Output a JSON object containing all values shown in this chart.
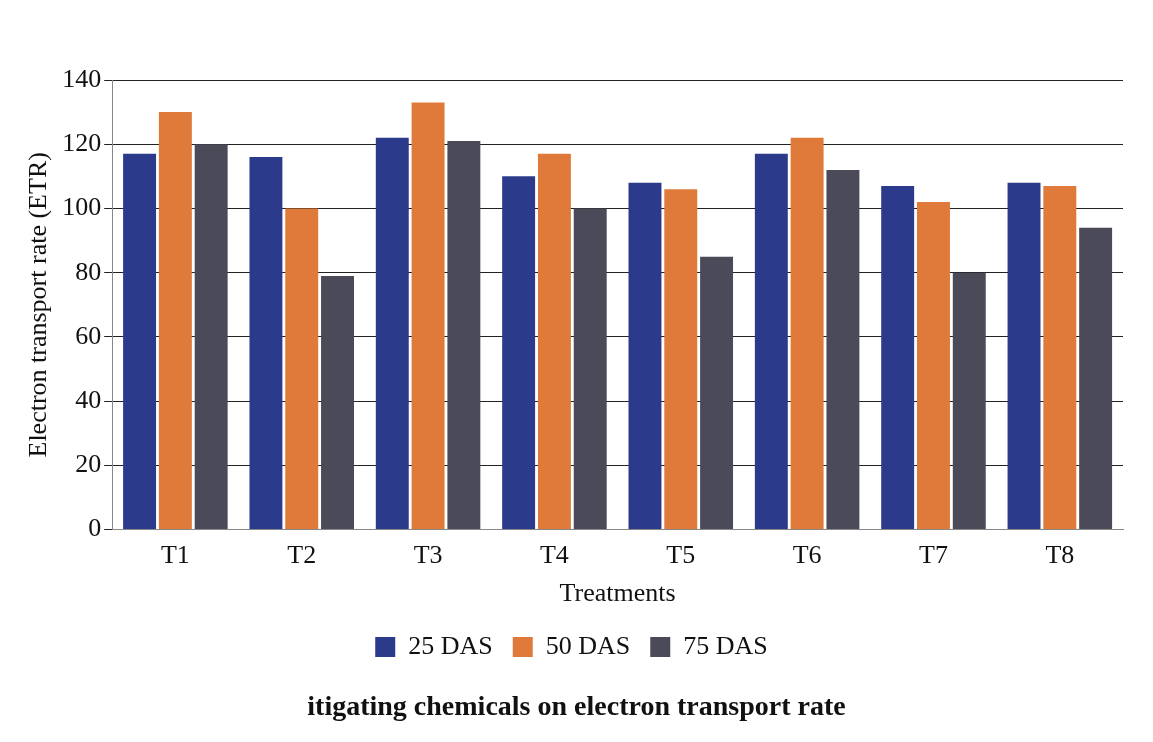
{
  "chart_data": {
    "type": "bar",
    "xlabel": "Treatments",
    "ylabel": "Electron transport rate (ETR)",
    "categories": [
      "T1",
      "T2",
      "T3",
      "T4",
      "T5",
      "T6",
      "T7",
      "T8"
    ],
    "series": [
      {
        "name": "25 DAS",
        "color": "#2b3a8a",
        "values": [
          117,
          116,
          122,
          110,
          108,
          117,
          107,
          108
        ]
      },
      {
        "name": "50 DAS",
        "color": "#e07a3a",
        "values": [
          130,
          100,
          133,
          117,
          106,
          122,
          102,
          107
        ]
      },
      {
        "name": "75 DAS",
        "color": "#4a4a58",
        "values": [
          120,
          79,
          121,
          100,
          85,
          112,
          80,
          94
        ]
      }
    ],
    "ylim": [
      0,
      140
    ],
    "yticks": [
      0,
      20,
      40,
      60,
      80,
      100,
      120,
      140
    ],
    "grid": "y",
    "legend": "bottom",
    "annotations": [
      "itigating chemicals on electron transport rate"
    ]
  }
}
